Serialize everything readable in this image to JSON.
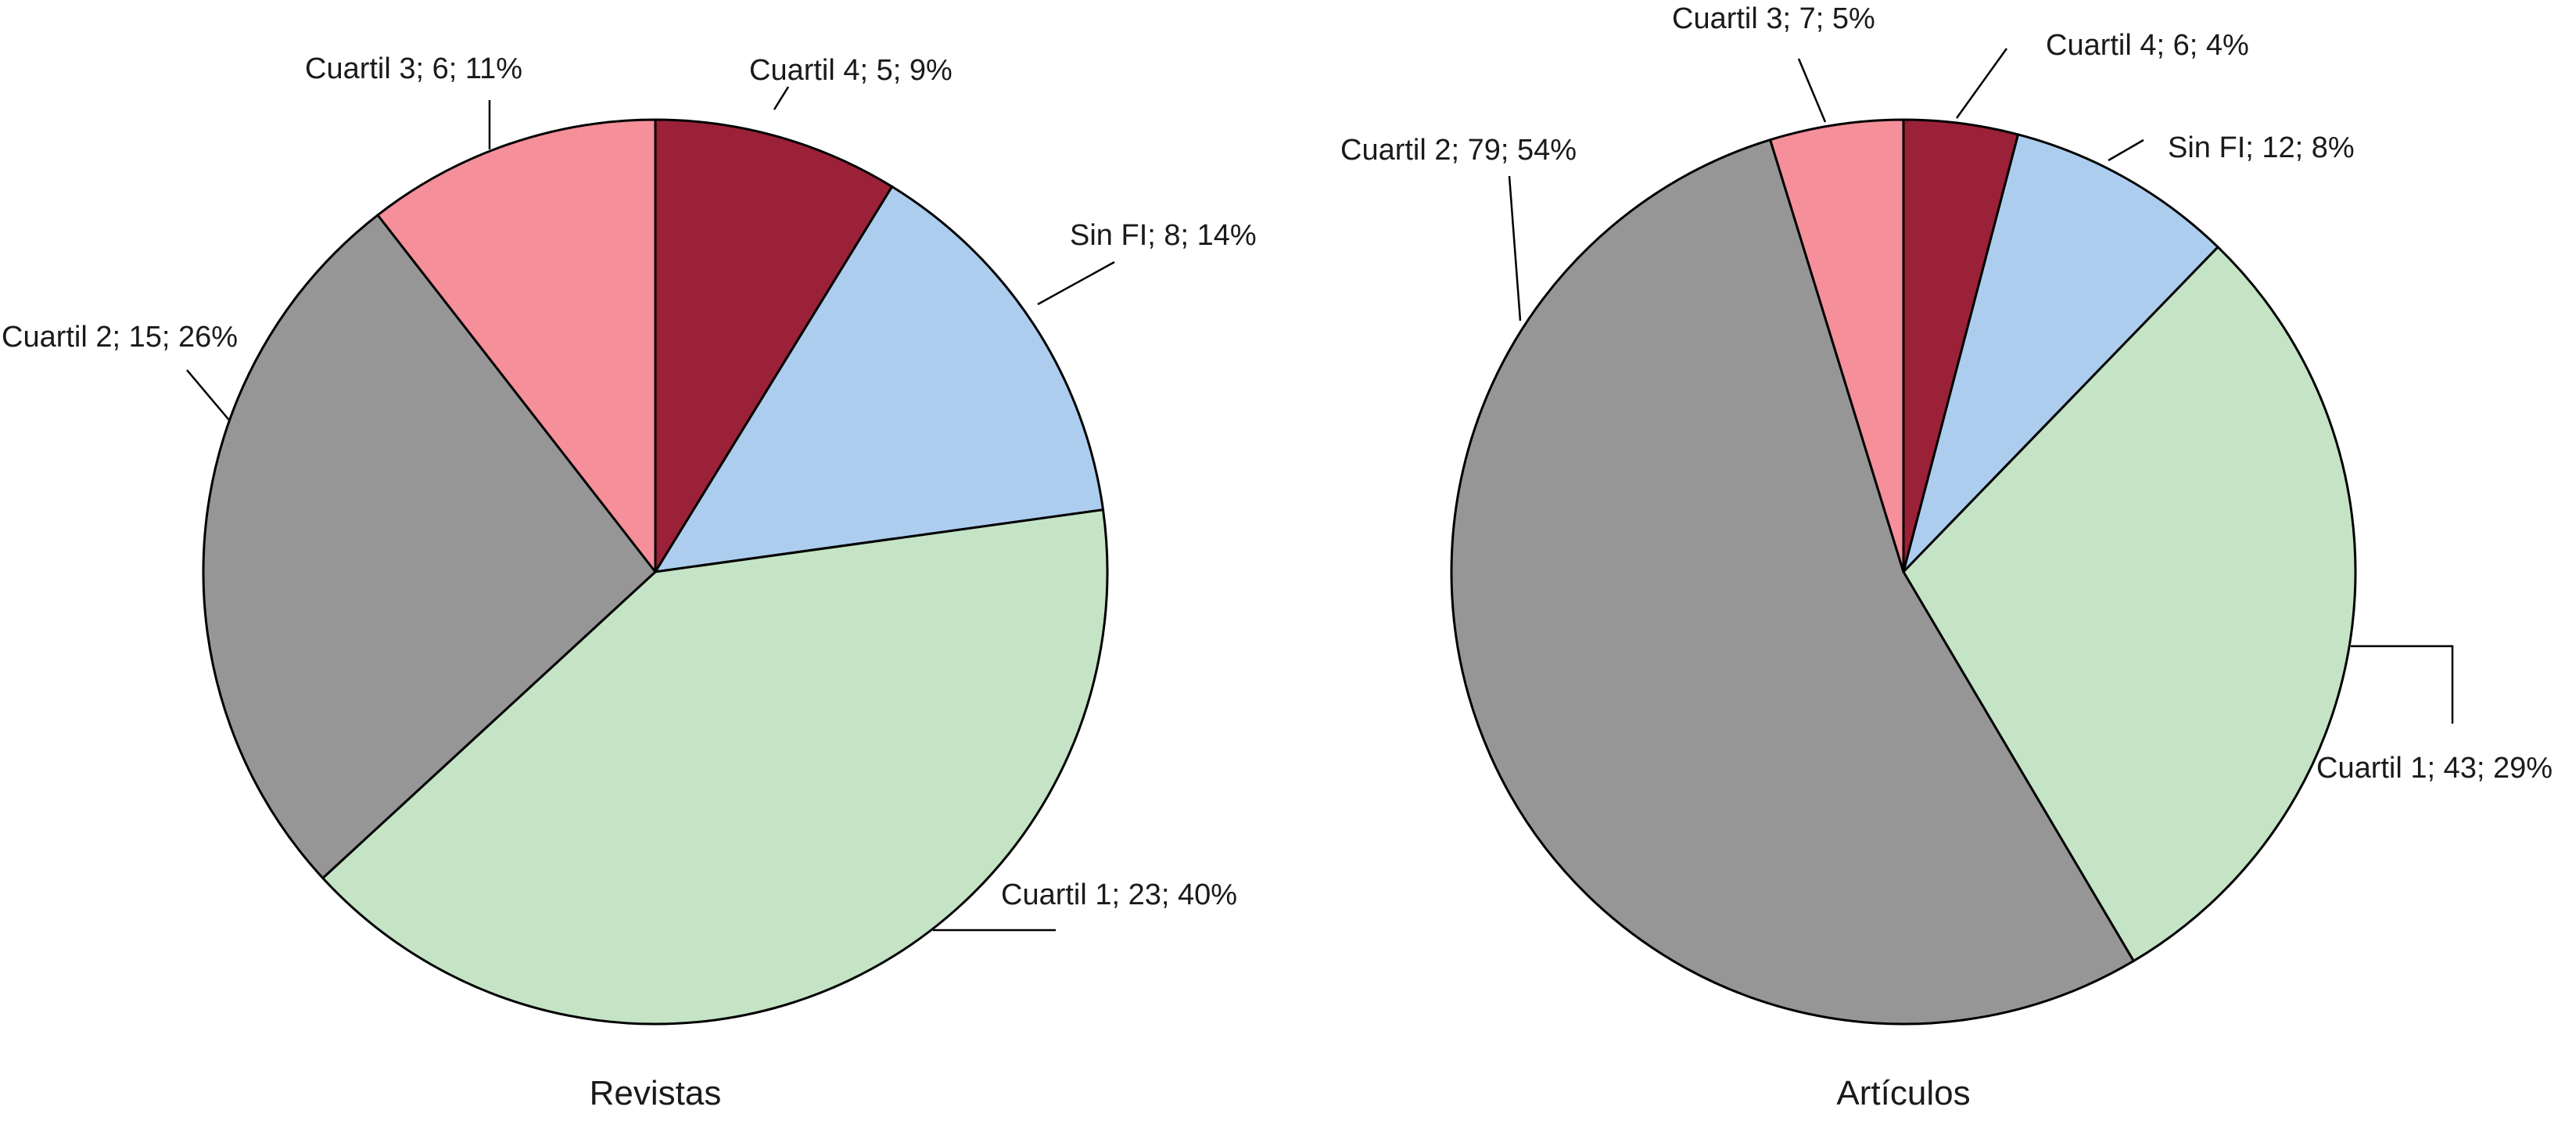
{
  "chart_data": [
    {
      "type": "pie",
      "title": "Revistas",
      "slices": [
        {
          "name": "Cuartil 4",
          "value": 5,
          "percent": 9,
          "label": "Cuartil 4; 5; 9%",
          "color": "#9b2138"
        },
        {
          "name": "Sin FI",
          "value": 8,
          "percent": 14,
          "label": "Sin FI; 8; 14%",
          "color": "#adcdee"
        },
        {
          "name": "Cuartil 1",
          "value": 23,
          "percent": 40,
          "label": "Cuartil 1; 23; 40%",
          "color": "#c4e4c5"
        },
        {
          "name": "Cuartil 2",
          "value": 15,
          "percent": 26,
          "label": "Cuartil 2; 15; 26%",
          "color": "#969696"
        },
        {
          "name": "Cuartil 3",
          "value": 6,
          "percent": 11,
          "label": "Cuartil 3; 6; 11%",
          "color": "#f58f9a"
        }
      ]
    },
    {
      "type": "pie",
      "title": "Artículos",
      "slices": [
        {
          "name": "Cuartil 4",
          "value": 6,
          "percent": 4,
          "label": "Cuartil 4; 6; 4%",
          "color": "#9b2138"
        },
        {
          "name": "Sin FI",
          "value": 12,
          "percent": 8,
          "label": "Sin FI; 12; 8%",
          "color": "#adcdee"
        },
        {
          "name": "Cuartil 1",
          "value": 43,
          "percent": 29,
          "label": "Cuartil 1; 43; 29%",
          "color": "#c4e4c5"
        },
        {
          "name": "Cuartil 2",
          "value": 79,
          "percent": 54,
          "label": "Cuartil 2; 79; 54%",
          "color": "#969696"
        },
        {
          "name": "Cuartil 3",
          "value": 7,
          "percent": 5,
          "label": "Cuartil 3; 7; 5%",
          "color": "#f58f9a"
        }
      ]
    }
  ]
}
